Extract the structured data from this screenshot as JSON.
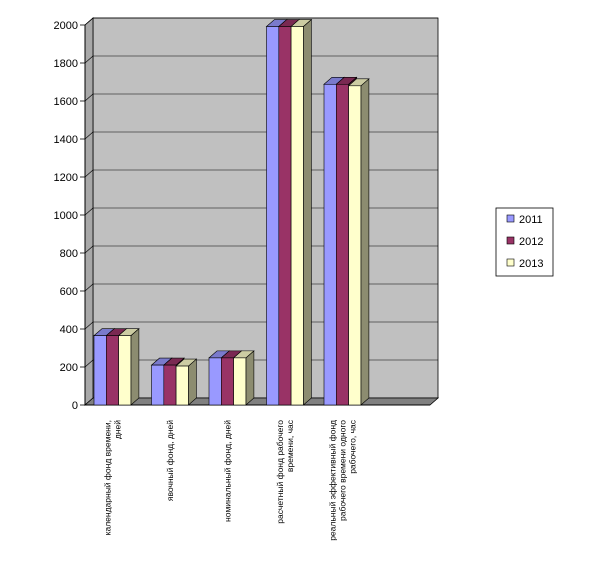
{
  "chart_data": {
    "type": "bar",
    "subtype": "3d-clustered-column",
    "categories": [
      [
        "календарный фонд времени,",
        "дней"
      ],
      [
        "явочный фонд, дней"
      ],
      [
        "номинальный фонд, дней"
      ],
      [
        "расчетный фонд рабочего",
        "времени, час"
      ],
      [
        "реальный эффективный фонд",
        "рабочего времени одного",
        "рабочего, час"
      ]
    ],
    "series": [
      {
        "name": "2011",
        "color": "#9999ff",
        "values": [
          365,
          210,
          248,
          1992,
          1688
        ]
      },
      {
        "name": "2012",
        "color": "#993366",
        "values": [
          365,
          210,
          248,
          1992,
          1688
        ]
      },
      {
        "name": "2013",
        "color": "#ffffcc",
        "values": [
          365,
          205,
          248,
          1992,
          1680
        ]
      }
    ],
    "ylim": [
      0,
      2000
    ],
    "yticks": [
      "0",
      "200",
      "400",
      "600",
      "800",
      "1000",
      "1200",
      "1400",
      "1600",
      "1800",
      "2000"
    ],
    "grid": true,
    "legend": "right",
    "wall_color": "#c0c0c0"
  }
}
